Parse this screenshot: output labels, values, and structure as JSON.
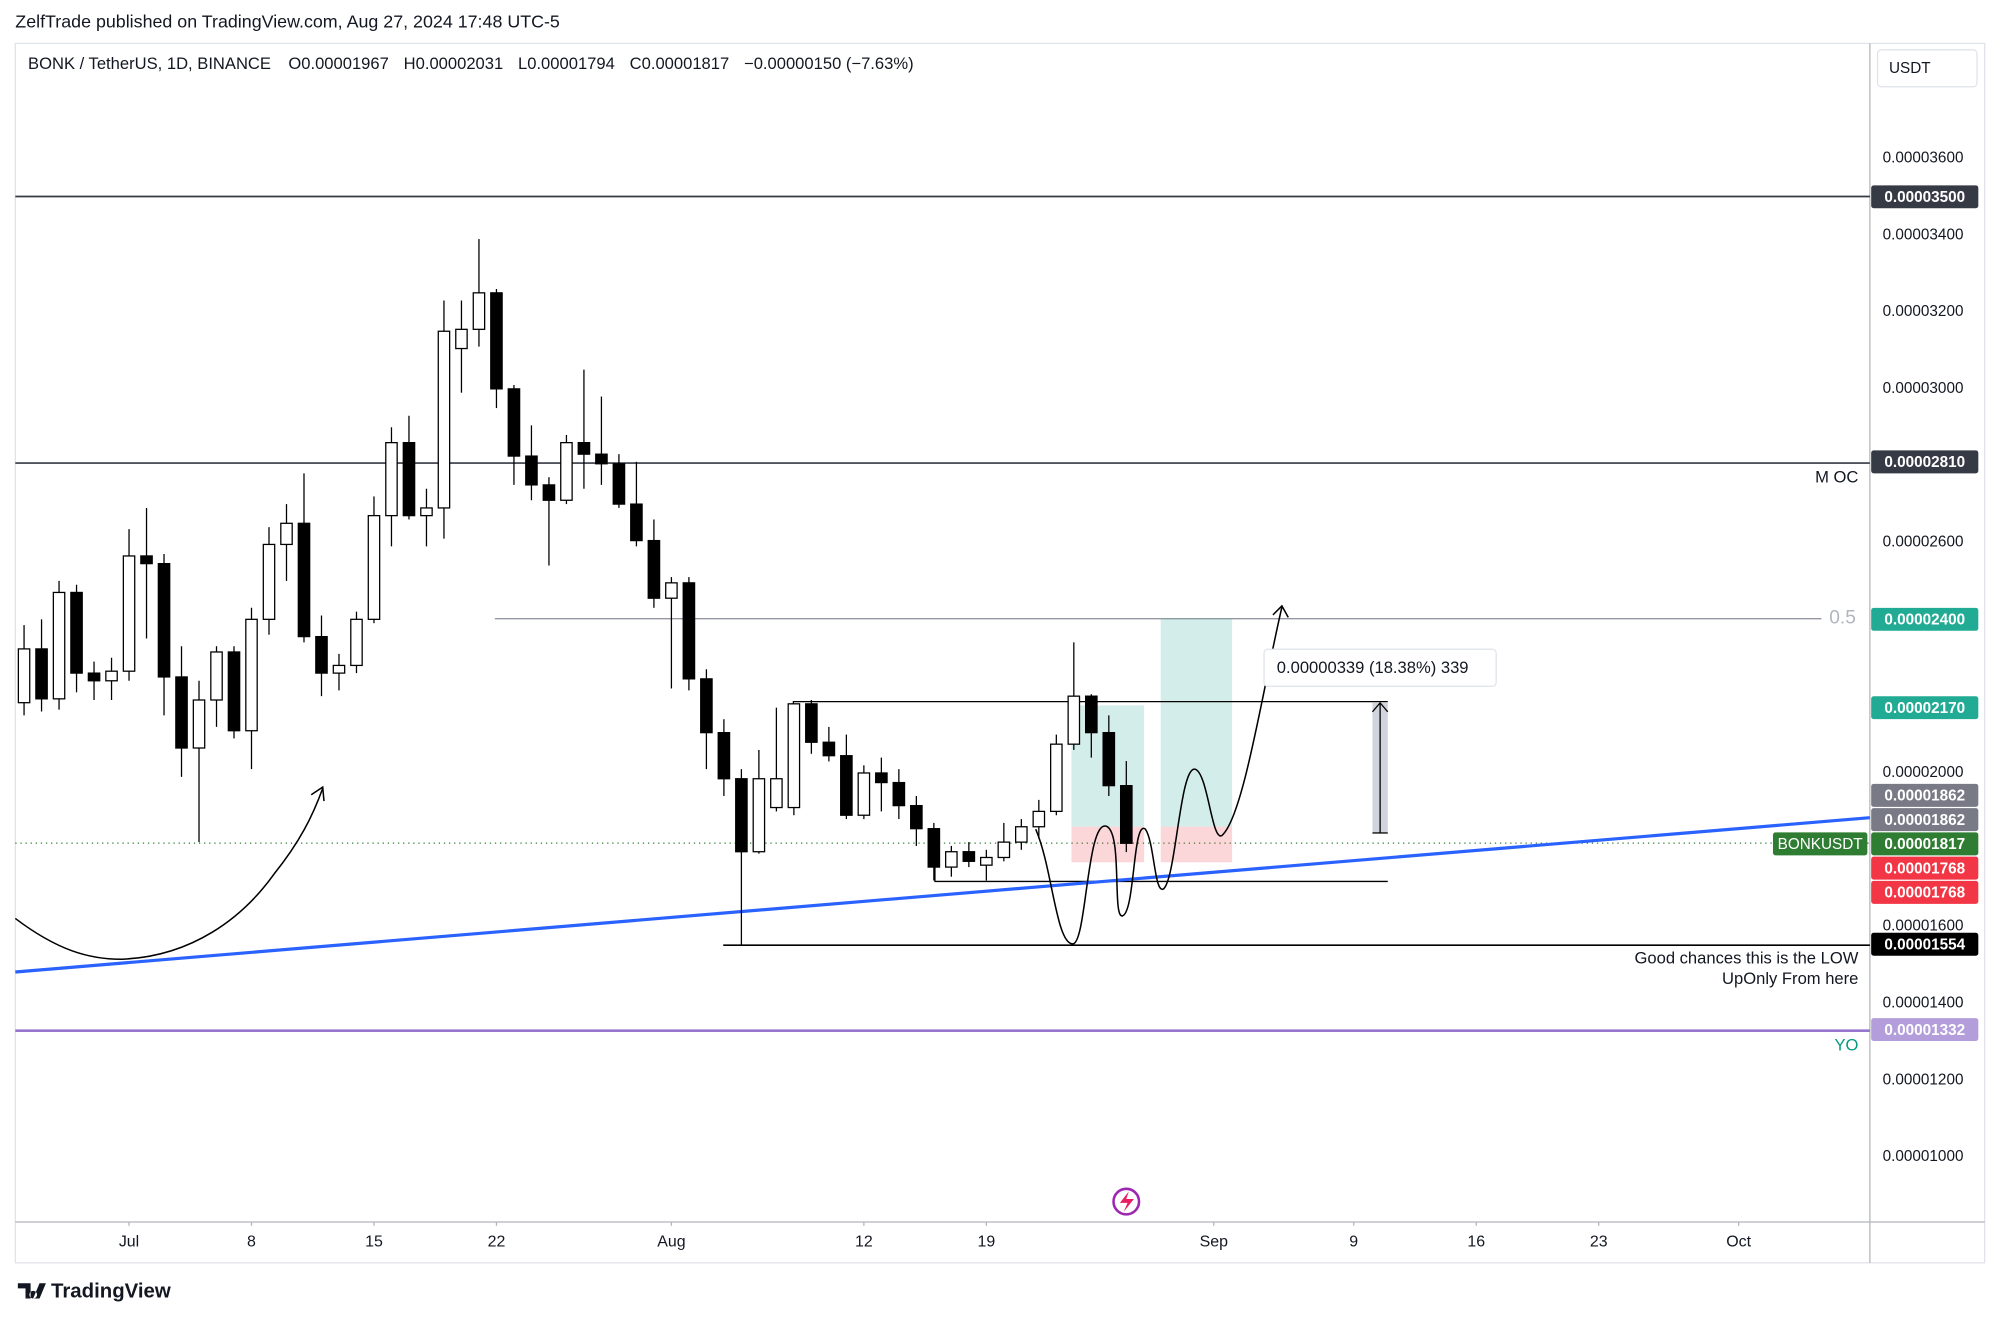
{
  "header": {
    "publisher": "ZelfTrade published on TradingView.com, Aug 27, 2024 17:48 UTC-5"
  },
  "footer": {
    "brand": "TradingView"
  },
  "chart_data": {
    "type": "candlestick",
    "title": "BONK / TetherUS, 1D, BINANCE",
    "legend": [
      "O0.00001967",
      "H0.00002031",
      "L0.00001794",
      "C0.00001817",
      "−0.00000150 (−7.63%)"
    ],
    "currency": "USDT",
    "up_color": "#ffffff",
    "down_color": "#000000",
    "grid": false,
    "x": [
      "2024-06-25",
      "2024-06-26",
      "2024-06-27",
      "2024-06-28",
      "2024-06-29",
      "2024-06-30",
      "2024-07-01",
      "2024-07-02",
      "2024-07-03",
      "2024-07-04",
      "2024-07-05",
      "2024-07-06",
      "2024-07-07",
      "2024-07-08",
      "2024-07-09",
      "2024-07-10",
      "2024-07-11",
      "2024-07-12",
      "2024-07-13",
      "2024-07-14",
      "2024-07-15",
      "2024-07-16",
      "2024-07-17",
      "2024-07-18",
      "2024-07-19",
      "2024-07-20",
      "2024-07-21",
      "2024-07-22",
      "2024-07-23",
      "2024-07-24",
      "2024-07-25",
      "2024-07-26",
      "2024-07-27",
      "2024-07-28",
      "2024-07-29",
      "2024-07-30",
      "2024-07-31",
      "2024-08-01",
      "2024-08-02",
      "2024-08-03",
      "2024-08-04",
      "2024-08-05",
      "2024-08-06",
      "2024-08-07",
      "2024-08-08",
      "2024-08-09",
      "2024-08-10",
      "2024-08-11",
      "2024-08-12",
      "2024-08-13",
      "2024-08-14",
      "2024-08-15",
      "2024-08-16",
      "2024-08-17",
      "2024-08-18",
      "2024-08-19",
      "2024-08-20",
      "2024-08-21",
      "2024-08-22",
      "2024-08-23",
      "2024-08-24",
      "2024-08-25",
      "2024-08-26",
      "2024-08-27"
    ],
    "open": [
      2.183e-05,
      2.323e-05,
      2.193e-05,
      2.47e-05,
      2.26e-05,
      2.24e-05,
      2.265e-05,
      2.565e-05,
      2.545e-05,
      2.25e-05,
      2.065e-05,
      2.19e-05,
      2.315e-05,
      2.11e-05,
      2.4e-05,
      2.595e-05,
      2.65e-05,
      2.355e-05,
      2.26e-05,
      2.28e-05,
      2.4e-05,
      2.67e-05,
      2.86e-05,
      2.67e-05,
      2.69e-05,
      3.105e-05,
      3.155e-05,
      3.25e-05,
      3e-05,
      2.825e-05,
      2.75e-05,
      2.71e-05,
      2.86e-05,
      2.83e-05,
      2.805e-05,
      2.7e-05,
      2.605e-05,
      2.455e-05,
      2.495e-05,
      2.245e-05,
      2.105e-05,
      1.985e-05,
      1.795e-05,
      1.91e-05,
      1.91e-05,
      2.18e-05,
      2.08e-05,
      2.045e-05,
      1.89e-05,
      2e-05,
      1.975e-05,
      1.915e-05,
      1.855e-05,
      1.755e-05,
      1.795e-05,
      1.76e-05,
      1.78e-05,
      1.82e-05,
      1.86e-05,
      1.9e-05,
      2.075e-05,
      2.2e-05,
      2.105e-05,
      1.967e-05
    ],
    "high": [
      2.385e-05,
      2.4e-05,
      2.5e-05,
      2.49e-05,
      2.29e-05,
      2.3e-05,
      2.635e-05,
      2.69e-05,
      2.57e-05,
      2.33e-05,
      2.24e-05,
      2.33e-05,
      2.33e-05,
      2.43e-05,
      2.64e-05,
      2.7e-05,
      2.78e-05,
      2.41e-05,
      2.31e-05,
      2.42e-05,
      2.72e-05,
      2.9e-05,
      2.93e-05,
      2.74e-05,
      3.23e-05,
      3.23e-05,
      3.39e-05,
      3.26e-05,
      3.01e-05,
      2.905e-05,
      2.77e-05,
      2.88e-05,
      3.05e-05,
      2.98e-05,
      2.83e-05,
      2.81e-05,
      2.66e-05,
      2.51e-05,
      2.51e-05,
      2.27e-05,
      2.14e-05,
      2.01e-05,
      2.06e-05,
      2.17e-05,
      2.18e-05,
      2.19e-05,
      2.12e-05,
      2.1e-05,
      2.02e-05,
      2.04e-05,
      2.01e-05,
      1.94e-05,
      1.87e-05,
      1.81e-05,
      1.82e-05,
      1.8e-05,
      1.87e-05,
      1.88e-05,
      1.93e-05,
      2.1e-05,
      2.34e-05,
      2.205e-05,
      2.15e-05,
      2.031e-05
    ],
    "low": [
      2.15e-05,
      2.16e-05,
      2.165e-05,
      2.21e-05,
      2.19e-05,
      2.19e-05,
      2.24e-05,
      2.35e-05,
      2.15e-05,
      1.99e-05,
      1.82e-05,
      2.12e-05,
      2.09e-05,
      2.01e-05,
      2.36e-05,
      2.5e-05,
      2.34e-05,
      2.2e-05,
      2.215e-05,
      2.26e-05,
      2.39e-05,
      2.59e-05,
      2.66e-05,
      2.59e-05,
      2.61e-05,
      2.99e-05,
      3.11e-05,
      2.95e-05,
      2.75e-05,
      2.71e-05,
      2.54e-05,
      2.7e-05,
      2.74e-05,
      2.75e-05,
      2.69e-05,
      2.59e-05,
      2.43e-05,
      2.22e-05,
      2.215e-05,
      2.01e-05,
      1.94e-05,
      1.55e-05,
      1.79e-05,
      1.9e-05,
      1.89e-05,
      2.05e-05,
      2.03e-05,
      1.88e-05,
      1.88e-05,
      1.9e-05,
      1.88e-05,
      1.81e-05,
      1.72e-05,
      1.73e-05,
      1.755e-05,
      1.72e-05,
      1.77e-05,
      1.8e-05,
      1.83e-05,
      1.89e-05,
      2.06e-05,
      2.04e-05,
      1.94e-05,
      1.794e-05
    ],
    "close": [
      2.323e-05,
      2.193e-05,
      2.47e-05,
      2.26e-05,
      2.24e-05,
      2.265e-05,
      2.565e-05,
      2.545e-05,
      2.25e-05,
      2.065e-05,
      2.19e-05,
      2.315e-05,
      2.11e-05,
      2.4e-05,
      2.595e-05,
      2.65e-05,
      2.355e-05,
      2.26e-05,
      2.28e-05,
      2.4e-05,
      2.67e-05,
      2.86e-05,
      2.67e-05,
      2.69e-05,
      3.15e-05,
      3.155e-05,
      3.25e-05,
      3e-05,
      2.825e-05,
      2.75e-05,
      2.71e-05,
      2.86e-05,
      2.83e-05,
      2.805e-05,
      2.7e-05,
      2.605e-05,
      2.455e-05,
      2.495e-05,
      2.245e-05,
      2.105e-05,
      1.985e-05,
      1.795e-05,
      1.985e-05,
      1.985e-05,
      2.18e-05,
      2.08e-05,
      2.045e-05,
      1.89e-05,
      2e-05,
      1.975e-05,
      1.915e-05,
      1.855e-05,
      1.755e-05,
      1.795e-05,
      1.77e-05,
      1.78e-05,
      1.82e-05,
      1.86e-05,
      1.9e-05,
      2.075e-05,
      2.2e-05,
      2.105e-05,
      1.967e-05,
      1.817e-05
    ],
    "xlim": [
      "2024-06-24T12:00:00Z",
      "2024-10-08T12:00:00Z"
    ],
    "xticks": [
      {
        "value": "2024-07-01",
        "label": "Jul"
      },
      {
        "value": "2024-07-08",
        "label": "8"
      },
      {
        "value": "2024-07-15",
        "label": "15"
      },
      {
        "value": "2024-07-22",
        "label": "22"
      },
      {
        "value": "2024-08-01",
        "label": "Aug"
      },
      {
        "value": "2024-08-12",
        "label": "12"
      },
      {
        "value": "2024-08-19",
        "label": "19"
      },
      {
        "value": "2024-09-01",
        "label": "Sep"
      },
      {
        "value": "2024-09-09",
        "label": "9"
      },
      {
        "value": "2024-09-16",
        "label": "16"
      },
      {
        "value": "2024-09-23",
        "label": "23"
      },
      {
        "value": "2024-10-01",
        "label": "Oct"
      }
    ],
    "ylim": [
      8.31e-06,
      3.896e-05
    ],
    "yticks": [
      {
        "value": 1e-05,
        "label": "0.00001000"
      },
      {
        "value": 1.2e-05,
        "label": "0.00001200"
      },
      {
        "value": 1.4e-05,
        "label": "0.00001400"
      },
      {
        "value": 1.6e-05,
        "label": "0.00001600"
      },
      {
        "value": 2e-05,
        "label": "0.00002000"
      },
      {
        "value": 2.6e-05,
        "label": "0.00002600"
      },
      {
        "value": 3e-05,
        "label": "0.00003000"
      },
      {
        "value": 3.2e-05,
        "label": "0.00003200"
      },
      {
        "value": 3.4e-05,
        "label": "0.00003400"
      },
      {
        "value": 3.6e-05,
        "label": "0.00003600"
      }
    ],
    "levels": [
      {
        "value": 3.5e-05,
        "label": "0.00003500",
        "color": "#363a45"
      },
      {
        "value": 2.81e-05,
        "label": "0.00002810",
        "color": "#363a45"
      },
      {
        "value": 2.4e-05,
        "label": "0.00002400",
        "color": "#22ab94"
      },
      {
        "value": 2.17e-05,
        "label": "0.00002170",
        "color": "#22ab94"
      },
      {
        "value": 1.862e-05,
        "label": "0.00001862",
        "color": "#787b86"
      },
      {
        "value": 1.862e-05,
        "label": "0.00001862",
        "color": "#787b86"
      },
      {
        "value": 1.817e-05,
        "label": "0.00001817",
        "color": "#2e7d32",
        "name": "BONKUSDT"
      },
      {
        "value": 1.768e-05,
        "label": "0.00001768",
        "color": "#f23645"
      },
      {
        "value": 1.768e-05,
        "label": "0.00001768",
        "color": "#f23645"
      },
      {
        "value": 1.554e-05,
        "label": "0.00001554",
        "color": "#000000"
      },
      {
        "value": 1.332e-05,
        "label": "0.00001332",
        "color": "#b39ddb"
      }
    ],
    "annotations": {
      "moc": "M OC",
      "fib": "0.5",
      "measure": "0.00000339 (18.38%) 339",
      "note1": "Good chances this is the LOW",
      "note2": "UpOnly From here",
      "yo": "YO"
    }
  }
}
